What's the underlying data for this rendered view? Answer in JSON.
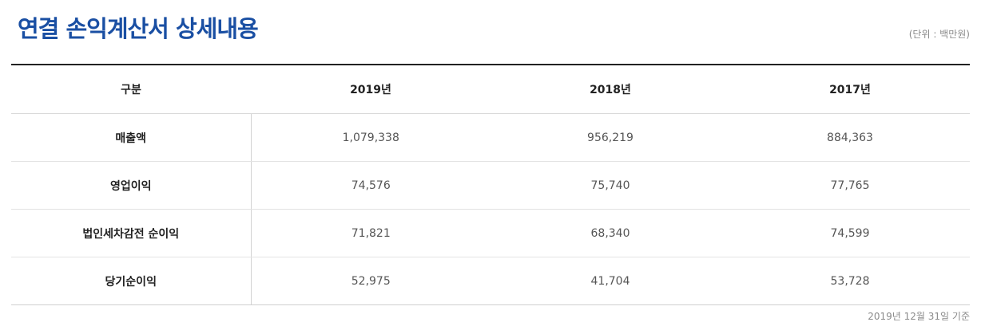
{
  "header": {
    "title": "연결 손익계산서 상세내용",
    "unit": "(단위 : 백만원)"
  },
  "table": {
    "columns": [
      "구분",
      "2019년",
      "2018년",
      "2017년"
    ],
    "rows": [
      {
        "label": "매출액",
        "values": [
          "1,079,338",
          "956,219",
          "884,363"
        ]
      },
      {
        "label": "영업이익",
        "values": [
          "74,576",
          "75,740",
          "77,765"
        ]
      },
      {
        "label": "법인세차감전 순이익",
        "values": [
          "71,821",
          "68,340",
          "74,599"
        ]
      },
      {
        "label": "당기순이익",
        "values": [
          "52,975",
          "41,704",
          "53,728"
        ]
      }
    ]
  },
  "footer": {
    "note": "2019년 12월 31일 기준"
  }
}
